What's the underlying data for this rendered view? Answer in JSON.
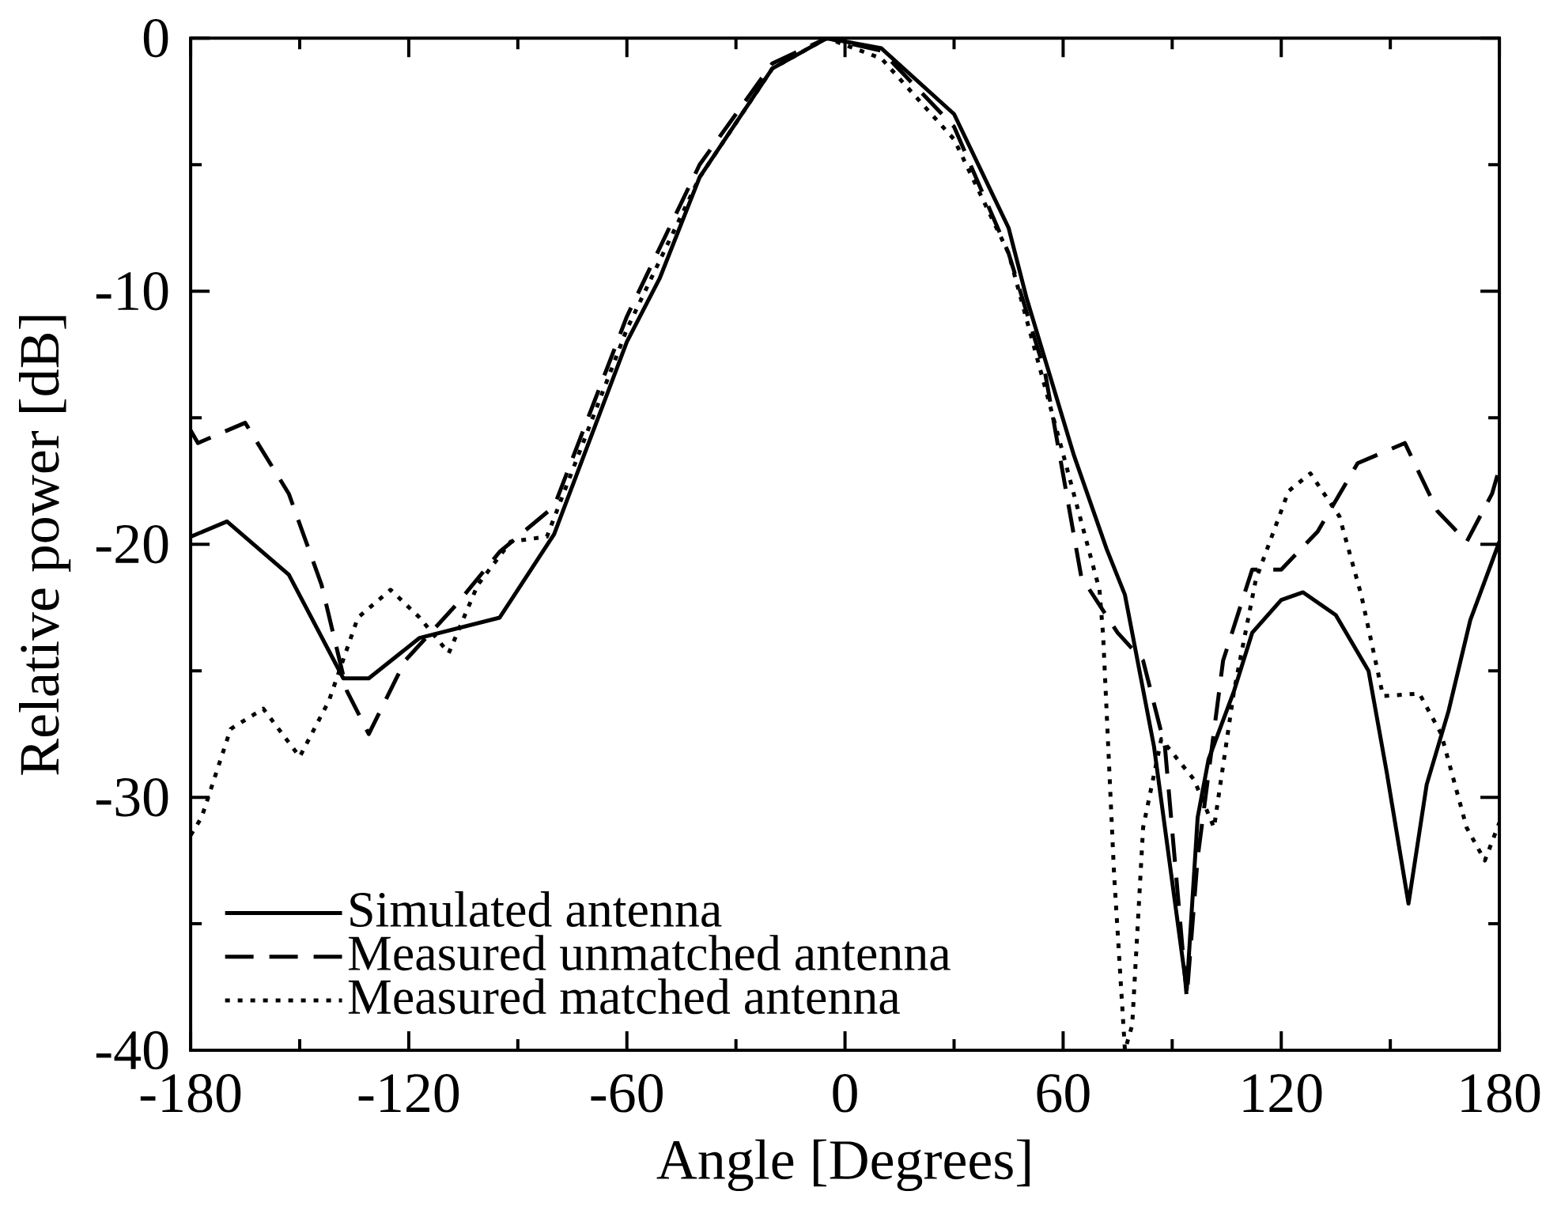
{
  "chart_data": {
    "type": "line",
    "xlabel": "Angle [Degrees]",
    "ylabel": "Relative power [dB]",
    "xlim": [
      -180,
      180
    ],
    "ylim": [
      -40,
      0
    ],
    "xticks": [
      -180,
      -120,
      -60,
      0,
      60,
      120,
      180
    ],
    "yticks": [
      -40,
      -30,
      -20,
      -10,
      0
    ],
    "grid": false,
    "legend": "bottom left",
    "marker": "none",
    "series": [
      {
        "name": "Simulated antenna",
        "color": "#000000",
        "line_style": "solid",
        "x": [
          -180,
          -170,
          -153,
          -138,
          -131,
          -117,
          -95,
          -80,
          -60,
          -51,
          -40,
          -20,
          -5,
          10,
          30,
          45,
          50,
          63,
          72,
          77,
          85,
          94,
          97,
          100,
          107,
          112,
          120,
          126,
          135,
          144,
          149,
          155,
          160,
          166,
          172,
          180
        ],
        "values": [
          -19.7,
          -19.1,
          -21.2,
          -25.3,
          -25.3,
          -23.7,
          -22.9,
          -19.6,
          -12,
          -9.5,
          -5.5,
          -1.2,
          0,
          -0.4,
          -3,
          -7.5,
          -10.3,
          -16.5,
          -20.2,
          -22,
          -28,
          -37.6,
          -30.8,
          -28.5,
          -25.8,
          -23.5,
          -22.2,
          -21.9,
          -22.8,
          -25,
          -29,
          -34.2,
          -29.5,
          -26.6,
          -23,
          -19.9
        ]
      },
      {
        "name": "Measured unmatched antenna",
        "color": "#000000",
        "line_style": "dashed",
        "x": [
          -180,
          -178,
          -165,
          -153,
          -144,
          -137,
          -131,
          -121,
          -107,
          -95,
          -80,
          -60,
          -40,
          -20,
          -5,
          10,
          30,
          45,
          55,
          65,
          75,
          82,
          88,
          94,
          97,
          104,
          112,
          120,
          130,
          141,
          154,
          163,
          171,
          178,
          180
        ],
        "values": [
          -15.5,
          -16,
          -15.2,
          -18,
          -21.6,
          -25.8,
          -27.5,
          -24.6,
          -22.4,
          -20.3,
          -18.5,
          -11,
          -5,
          -1,
          0,
          -0.5,
          -3.5,
          -8.5,
          -13.2,
          -21.3,
          -23.5,
          -24.6,
          -28,
          -37.9,
          -32.4,
          -24.6,
          -21,
          -21,
          -19.5,
          -16.8,
          -16,
          -18.7,
          -19.9,
          -18,
          -17
        ]
      },
      {
        "name": "Measured matched antenna",
        "color": "#000000",
        "line_style": "dotted",
        "x": [
          -180,
          -177,
          -169,
          -160,
          -150,
          -142,
          -134,
          -125,
          -117,
          -109,
          -101,
          -92,
          -82,
          -60,
          -40,
          -20,
          -5,
          10,
          30,
          45,
          59,
          70,
          71,
          74,
          77,
          79,
          82,
          87,
          96,
          101.5,
          107,
          113,
          122,
          128,
          136,
          142,
          148,
          158,
          164,
          171,
          176,
          180
        ],
        "values": [
          -31.5,
          -30.8,
          -27.3,
          -26.5,
          -28.4,
          -26.2,
          -22.9,
          -21.8,
          -22.9,
          -24.3,
          -21.6,
          -19.9,
          -19.7,
          -11.5,
          -5.5,
          -1.2,
          0,
          -0.8,
          -4,
          -8.5,
          -15.9,
          -21.8,
          -23.6,
          -33,
          -40,
          -39,
          -31.2,
          -27.7,
          -29.3,
          -31.2,
          -25.8,
          -21.4,
          -17.9,
          -17.2,
          -18.9,
          -22,
          -26,
          -25.9,
          -27.5,
          -31.2,
          -32.5,
          -31
        ]
      }
    ]
  }
}
